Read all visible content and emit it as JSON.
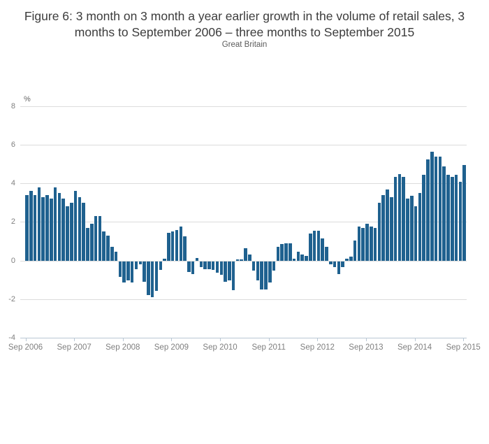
{
  "title": "Figure 6: 3 month on 3 month a year earlier growth in the volume of retail sales, 3 months to September 2006 – three months to September 2015",
  "subtitle": "Great Britain",
  "chart_data": {
    "type": "bar",
    "title": "Figure 6: 3 month on 3 month a year earlier growth in the volume of retail sales, 3 months to September 2006 – three months to September 2015",
    "subtitle": "Great Britain",
    "ylabel": "%",
    "ylim": [
      -4,
      8
    ],
    "y_ticks": [
      8,
      6,
      4,
      2,
      0,
      -2,
      -4
    ],
    "grid": "horizontal",
    "legend_position": "none",
    "x_start": "Sep 2006",
    "x_end": "Sep 2015",
    "x_frequency": "monthly",
    "x_tick_labels": [
      "Sep 2006",
      "Sep 2007",
      "Sep 2008",
      "Sep 2009",
      "Sep 2010",
      "Sep 2011",
      "Sep 2012",
      "Sep 2013",
      "Sep 2014",
      "Sep 2015"
    ],
    "values": [
      3.4,
      3.6,
      3.4,
      3.8,
      3.3,
      3.4,
      3.2,
      3.8,
      3.5,
      3.2,
      2.8,
      3.0,
      3.6,
      3.3,
      3.0,
      1.7,
      1.9,
      2.3,
      2.3,
      1.5,
      1.3,
      0.7,
      0.45,
      -0.8,
      -1.1,
      -1.0,
      -1.1,
      -0.4,
      -0.15,
      -1.05,
      -1.75,
      -1.85,
      -1.55,
      -0.45,
      0.1,
      1.45,
      1.5,
      1.6,
      1.75,
      1.25,
      -0.55,
      -0.65,
      0.15,
      -0.3,
      -0.4,
      -0.4,
      -0.45,
      -0.6,
      -0.7,
      -1.05,
      -1.0,
      -1.5,
      0.05,
      0.05,
      0.65,
      0.3,
      -0.5,
      -1.0,
      -1.45,
      -1.45,
      -1.1,
      -0.5,
      0.7,
      0.85,
      0.9,
      0.9,
      0.1,
      0.45,
      0.3,
      0.25,
      1.4,
      1.55,
      1.55,
      1.15,
      0.7,
      -0.15,
      -0.3,
      -0.65,
      -0.3,
      0.1,
      0.2,
      1.05,
      1.75,
      1.7,
      1.9,
      1.75,
      1.7,
      3.0,
      3.4,
      3.7,
      3.3,
      4.35,
      4.5,
      4.35,
      3.2,
      3.35,
      2.8,
      3.5,
      4.45,
      5.25,
      5.65,
      5.4,
      5.4,
      4.9,
      4.45,
      4.35,
      4.45,
      4.1,
      4.95
    ],
    "bar_color": "#1F618F",
    "gridline_color": "#DCDCDC",
    "axis_color": "#B9C7D4",
    "title_color": "#3C3C3C",
    "tick_label_color": "#7F7F7F"
  }
}
